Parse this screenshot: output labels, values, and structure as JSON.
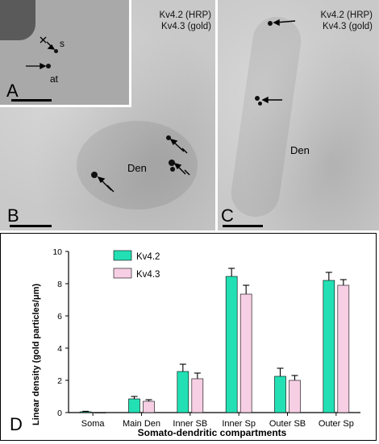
{
  "panels": {
    "a": {
      "label": "A",
      "marks": {
        "s": "s",
        "at": "at"
      }
    },
    "b": {
      "label": "B",
      "marks": {
        "den": "Den"
      }
    },
    "c": {
      "label": "C",
      "marks": {
        "den": "Den"
      }
    },
    "caption": {
      "kv42": "Kv4.2 (HRP)",
      "kv43": "Kv4.3 (gold)"
    }
  },
  "chart_panel_label": "D",
  "chart_data": {
    "type": "bar",
    "categories": [
      "Soma",
      "Main Den",
      "Inner SB",
      "Inner Sp",
      "Outer SB",
      "Outer Sp"
    ],
    "series": [
      {
        "name": "Kv4.2",
        "color": "#22e0b4",
        "values": [
          0.05,
          0.85,
          2.55,
          8.45,
          2.25,
          8.2
        ],
        "errors": [
          0.03,
          0.15,
          0.45,
          0.5,
          0.5,
          0.5
        ]
      },
      {
        "name": "Kv4.3",
        "color": "#f7cfe4",
        "values": [
          0.0,
          0.7,
          2.1,
          7.35,
          2.0,
          7.9
        ],
        "errors": [
          0.0,
          0.1,
          0.35,
          0.55,
          0.3,
          0.35
        ]
      }
    ],
    "xlabel": "Somato-dendritic compartments",
    "ylabel": "Linear density (gold particles/μm)",
    "ylim": [
      0,
      10
    ],
    "yticks": [
      0,
      2,
      4,
      6,
      8,
      10
    ],
    "legend": "top-left"
  }
}
